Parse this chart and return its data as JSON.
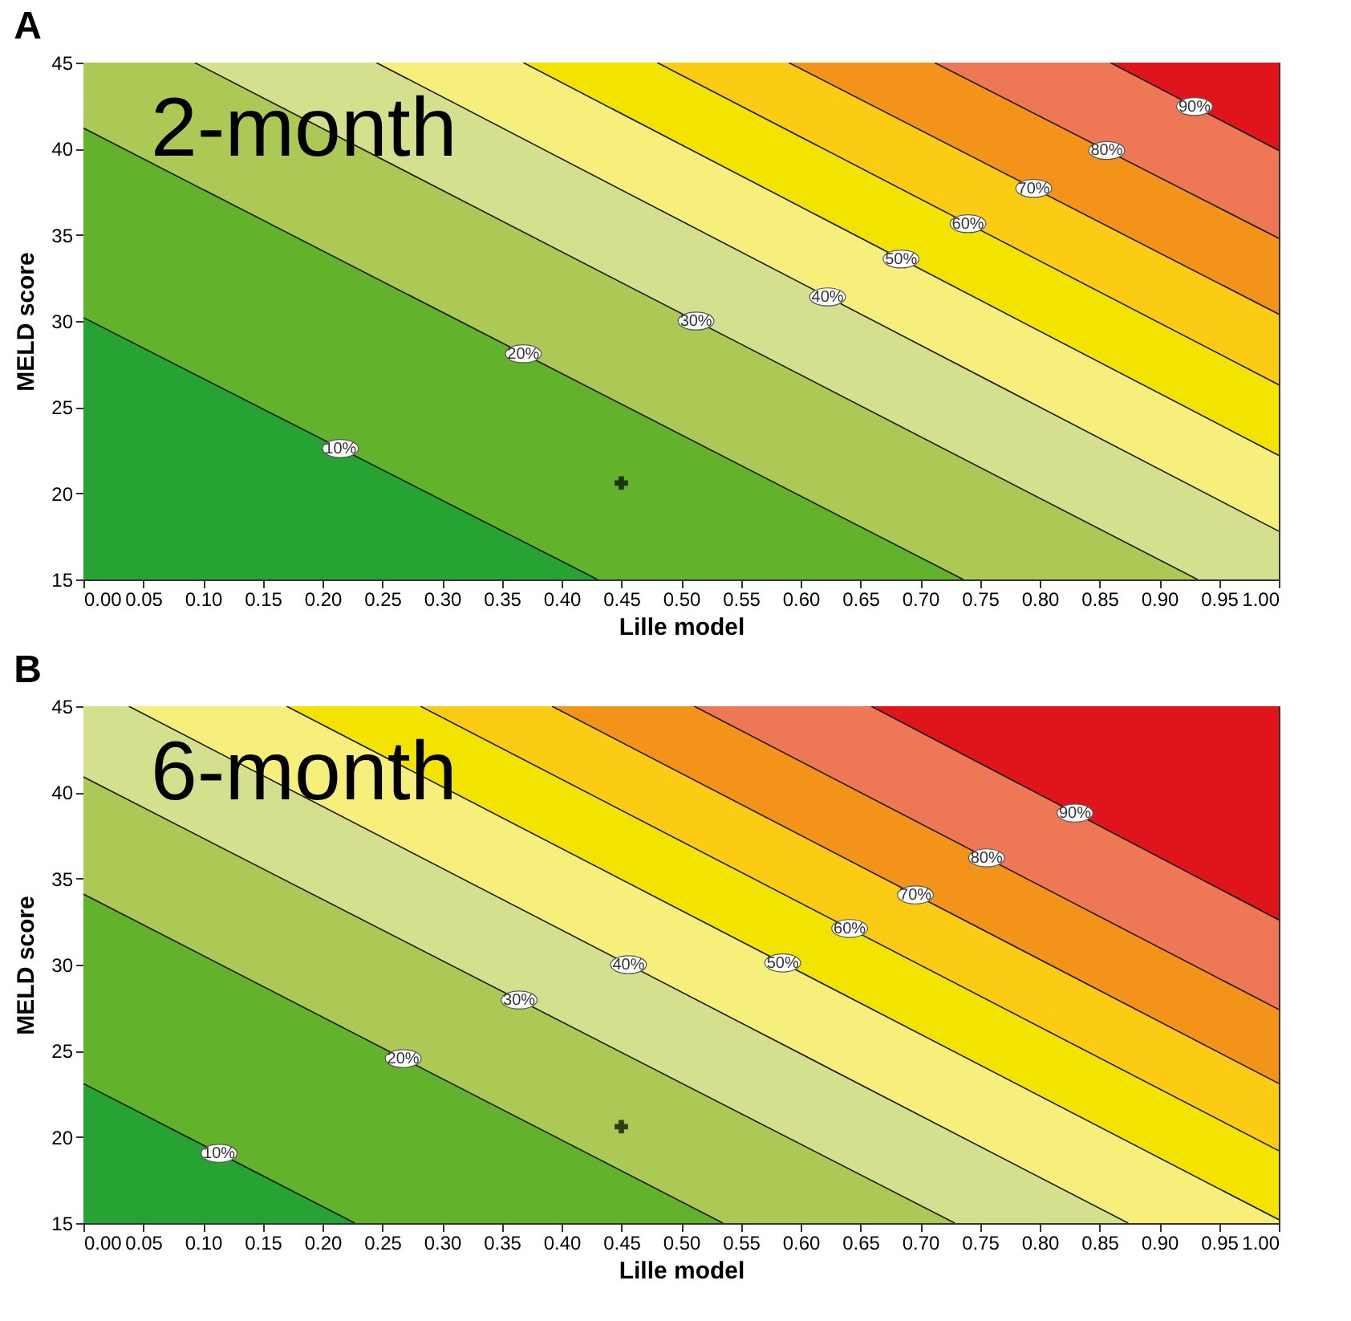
{
  "chart_data": [
    {
      "type": "line",
      "title": "A",
      "xlabel": "Lille model",
      "ylabel": "MELD score",
      "annotations": [
        "2-month"
      ],
      "colors": [
        "#27a334",
        "#63b22c",
        "#abc954",
        "#d4e08e",
        "#f7ef7c",
        "#f2e400",
        "#fccc14",
        "#f39319",
        "#ee7855",
        "#e0151b"
      ],
      "xlim": [
        0,
        1
      ],
      "ylim": [
        15,
        45
      ],
      "xticks": [
        {
          "value": 0,
          "label": "0.00"
        },
        {
          "value": 0.05,
          "label": "0.05"
        },
        {
          "value": 0.1,
          "label": "0.10"
        },
        {
          "value": 0.15,
          "label": "0.15"
        },
        {
          "value": 0.2,
          "label": "0.20"
        },
        {
          "value": 0.25,
          "label": "0.25"
        },
        {
          "value": 0.3,
          "label": "0.30"
        },
        {
          "value": 0.35,
          "label": "0.35"
        },
        {
          "value": 0.4,
          "label": "0.40"
        },
        {
          "value": 0.45,
          "label": "0.45"
        },
        {
          "value": 0.5,
          "label": "0.50"
        },
        {
          "value": 0.55,
          "label": "0.55"
        },
        {
          "value": 0.6,
          "label": "0.60"
        },
        {
          "value": 0.65,
          "label": "0.65"
        },
        {
          "value": 0.7,
          "label": "0.70"
        },
        {
          "value": 0.75,
          "label": "0.75"
        },
        {
          "value": 0.8,
          "label": "0.80"
        },
        {
          "value": 0.85,
          "label": "0.85"
        },
        {
          "value": 0.9,
          "label": "0.90"
        },
        {
          "value": 0.95,
          "label": "0.95"
        },
        {
          "value": 1,
          "label": "1.00"
        }
      ],
      "yticks": [
        15,
        20,
        25,
        30,
        35,
        40,
        45
      ],
      "series": [
        {
          "name": "10%",
          "color": "#1a1a1a",
          "x": [
            0,
            0.43
          ],
          "values": [
            30.2,
            15
          ]
        },
        {
          "name": "20%",
          "color": "#1a1a1a",
          "x": [
            0,
            0.736
          ],
          "values": [
            41.2,
            15
          ]
        },
        {
          "name": "30%",
          "color": "#1a1a1a",
          "x": [
            0.093,
            0.932
          ],
          "values": [
            45,
            15
          ]
        },
        {
          "name": "40%",
          "color": "#1a1a1a",
          "x": [
            0.245,
            1
          ],
          "values": [
            45,
            17.8
          ]
        },
        {
          "name": "50%",
          "color": "#1a1a1a",
          "x": [
            0.368,
            1
          ],
          "values": [
            45,
            22.2
          ]
        },
        {
          "name": "60%",
          "color": "#1a1a1a",
          "x": [
            0.48,
            1
          ],
          "values": [
            45,
            26.3
          ]
        },
        {
          "name": "70%",
          "color": "#1a1a1a",
          "x": [
            0.59,
            1
          ],
          "values": [
            45,
            30.4
          ]
        },
        {
          "name": "80%",
          "color": "#1a1a1a",
          "x": [
            0.712,
            1
          ],
          "values": [
            45,
            34.8
          ]
        },
        {
          "name": "90%",
          "color": "#1a1a1a",
          "x": [
            0.859,
            1
          ],
          "values": [
            45,
            39.9
          ]
        },
        {
          "type": "scatter",
          "color": "#000000",
          "marker": "cross",
          "x": [
            0.45
          ],
          "values": [
            20.6
          ]
        }
      ]
    },
    {
      "type": "line",
      "title": "B",
      "xlabel": "Lille model",
      "ylabel": "MELD score",
      "annotations": [
        "6-month"
      ],
      "colors": [
        "#27a334",
        "#63b22c",
        "#abc954",
        "#d4e08e",
        "#f7ef7c",
        "#f2e400",
        "#fccc14",
        "#f39319",
        "#ee7855",
        "#e0151b"
      ],
      "xlim": [
        0,
        1
      ],
      "ylim": [
        15,
        45
      ],
      "xticks": [
        {
          "value": 0,
          "label": "0.00"
        },
        {
          "value": 0.05,
          "label": "0.05"
        },
        {
          "value": 0.1,
          "label": "0.10"
        },
        {
          "value": 0.15,
          "label": "0.15"
        },
        {
          "value": 0.2,
          "label": "0.20"
        },
        {
          "value": 0.25,
          "label": "0.25"
        },
        {
          "value": 0.3,
          "label": "0.30"
        },
        {
          "value": 0.35,
          "label": "0.35"
        },
        {
          "value": 0.4,
          "label": "0.40"
        },
        {
          "value": 0.45,
          "label": "0.45"
        },
        {
          "value": 0.5,
          "label": "0.50"
        },
        {
          "value": 0.55,
          "label": "0.55"
        },
        {
          "value": 0.6,
          "label": "0.60"
        },
        {
          "value": 0.65,
          "label": "0.65"
        },
        {
          "value": 0.7,
          "label": "0.70"
        },
        {
          "value": 0.75,
          "label": "0.75"
        },
        {
          "value": 0.8,
          "label": "0.80"
        },
        {
          "value": 0.85,
          "label": "0.85"
        },
        {
          "value": 0.9,
          "label": "0.90"
        },
        {
          "value": 0.95,
          "label": "0.95"
        },
        {
          "value": 1,
          "label": "1.00"
        }
      ],
      "yticks": [
        15,
        20,
        25,
        30,
        35,
        40,
        45
      ],
      "series": [
        {
          "name": "10%",
          "color": "#1a1a1a",
          "x": [
            0,
            0.227
          ],
          "values": [
            23.1,
            15
          ]
        },
        {
          "name": "20%",
          "color": "#1a1a1a",
          "x": [
            0,
            0.535
          ],
          "values": [
            34.1,
            15
          ]
        },
        {
          "name": "30%",
          "color": "#1a1a1a",
          "x": [
            0,
            0.729
          ],
          "values": [
            40.9,
            15
          ]
        },
        {
          "name": "40%",
          "color": "#1a1a1a",
          "x": [
            0.038,
            0.874
          ],
          "values": [
            45,
            15
          ]
        },
        {
          "name": "50%",
          "color": "#1a1a1a",
          "x": [
            0.17,
            1
          ],
          "values": [
            45,
            15.2
          ]
        },
        {
          "name": "60%",
          "color": "#1a1a1a",
          "x": [
            0.282,
            1
          ],
          "values": [
            45,
            19.2
          ]
        },
        {
          "name": "70%",
          "color": "#1a1a1a",
          "x": [
            0.392,
            1
          ],
          "values": [
            45,
            23.1
          ]
        },
        {
          "name": "80%",
          "color": "#1a1a1a",
          "x": [
            0.511,
            1
          ],
          "values": [
            45,
            27.4
          ]
        },
        {
          "name": "90%",
          "color": "#1a1a1a",
          "x": [
            0.659,
            1
          ],
          "values": [
            45,
            32.6
          ]
        },
        {
          "type": "scatter",
          "color": "#000000",
          "marker": "cross",
          "x": [
            0.45
          ],
          "values": [
            20.6
          ]
        }
      ]
    }
  ]
}
